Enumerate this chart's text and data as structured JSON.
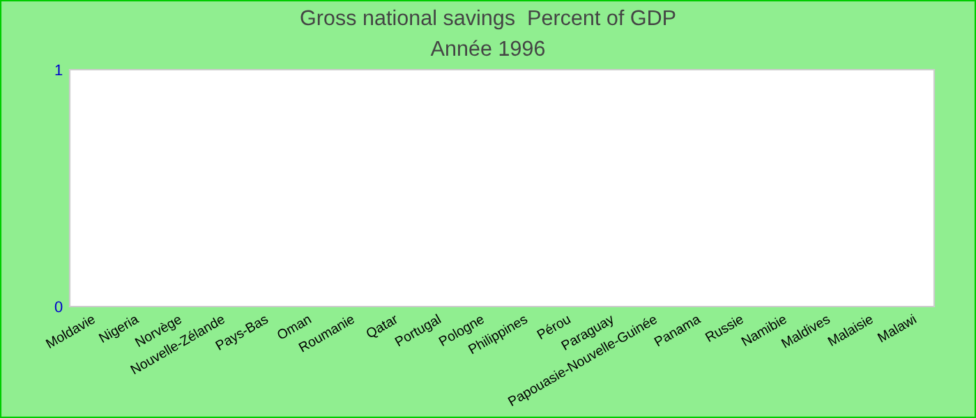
{
  "chart_data": {
    "type": "bar",
    "title": "Gross national savings  Percent of GDP",
    "subtitle": "Année 1996",
    "categories": [
      "Moldavie",
      "Nigeria",
      "Norvège",
      "Nouvelle-Zélande",
      "Pays-Bas",
      "Oman",
      "Roumanie",
      "Qatar",
      "Portugal",
      "Pologne",
      "Philippines",
      "Pérou",
      "Paraguay",
      "Papouasie-Nouvelle-Guinée",
      "Panama",
      "Russie",
      "Namibie",
      "Maldives",
      "Malaisie",
      "Malawi"
    ],
    "values": [
      null,
      null,
      null,
      null,
      null,
      null,
      null,
      null,
      null,
      null,
      null,
      null,
      null,
      null,
      null,
      null,
      null,
      null,
      null,
      null
    ],
    "ylim": [
      0,
      1
    ],
    "yticks": [
      0,
      1
    ],
    "grid": false
  }
}
